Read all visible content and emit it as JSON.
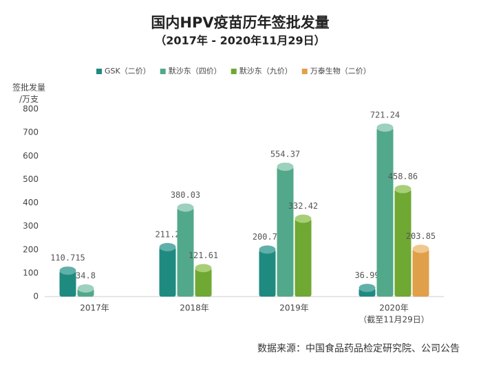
{
  "chart_data": {
    "type": "bar",
    "title": "国内HPV疫苗历年签批发量",
    "subtitle": "（2017年 - 2020年11月29日）",
    "y_label": [
      "签批发量",
      "/万支"
    ],
    "categories": [
      "2017年",
      "2018年",
      "2019年",
      "2020年"
    ],
    "category_notes": [
      null,
      null,
      null,
      "（截至11月29日）"
    ],
    "series": [
      {
        "name": "GSK（二价）",
        "color": "#1f8a80",
        "top_color": "#5fb0a8",
        "values": [
          110.715,
          211.2,
          200.75,
          36.99
        ]
      },
      {
        "name": "默沙东（四价）",
        "color": "#52a88a",
        "top_color": "#9dd0bd",
        "values": [
          34.8,
          380.03,
          554.37,
          721.24
        ]
      },
      {
        "name": "默沙东（九价）",
        "color": "#6fa832",
        "top_color": "#a8cf78",
        "values": [
          null,
          121.61,
          332.42,
          458.86
        ]
      },
      {
        "name": "万泰生物（二价）",
        "color": "#e0a04a",
        "top_color": "#f0c88e",
        "values": [
          null,
          null,
          null,
          203.85
        ]
      }
    ],
    "ylim": [
      0,
      800
    ],
    "yticks": [
      0,
      100,
      200,
      300,
      400,
      500,
      600,
      700,
      800
    ],
    "source": "数据来源：中国食品药品检定研究院、公司公告"
  }
}
